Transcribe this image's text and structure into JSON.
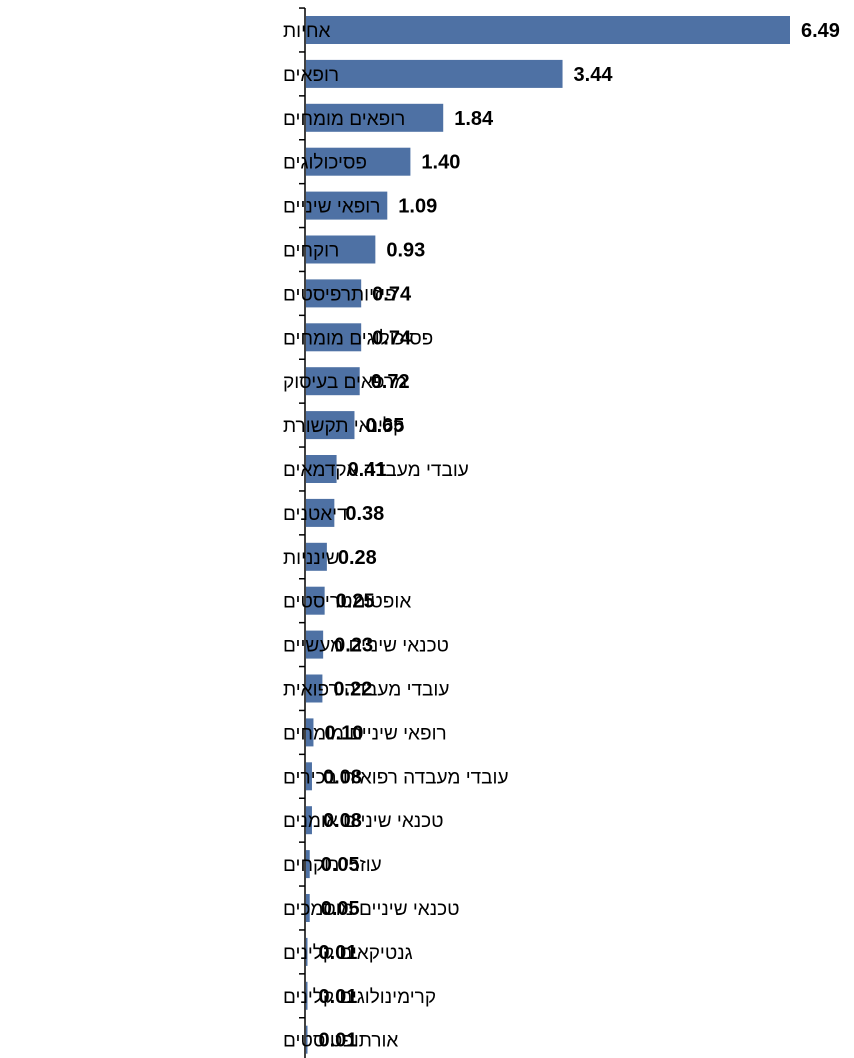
{
  "chart_data": {
    "type": "bar",
    "orientation": "horizontal",
    "categories": [
      "אחיות",
      "רופאים",
      "רופאים מומחים",
      "פסיכולוגים",
      "רופאי שיניים",
      "רוקחים",
      "פיזיותרפיסטים",
      "פסיכולוגים מומחים",
      "מרפאים בעיסוק",
      "קלינאי תקשורת",
      "עובדי מעבדה אקדמאים",
      "דיאטנים",
      "שינניות",
      "אופטומטריסטים",
      "טכנאי שיניים מעשיים",
      "עובדי מעבדה רפואית",
      "רופאי שיניים מומחים",
      "עובדי מעבדה רפואית בכירים",
      "טכנאי שיניים אומנים",
      "עוזרי רוקחים",
      "טכנאי שיניים מוסמכים",
      "גנטיקאים קלינים",
      "קרימינולוגים קלינים",
      "אורתופטיסטים"
    ],
    "values": [
      6.49,
      3.44,
      1.84,
      1.4,
      1.09,
      0.93,
      0.74,
      0.74,
      0.72,
      0.65,
      0.41,
      0.38,
      0.28,
      0.25,
      0.23,
      0.22,
      0.1,
      0.08,
      0.08,
      0.05,
      0.05,
      0.01,
      0.01,
      0.01
    ],
    "value_labels": [
      "6.49",
      "3.44",
      "1.84",
      "1.40",
      "1.09",
      "0.93",
      "0.74",
      "0.74",
      "0.72",
      "0.65",
      "0.41",
      "0.38",
      "0.28",
      "0.25",
      "0.23",
      "0.22",
      "0.10",
      "0.08",
      "0.08",
      "0.05",
      "0.05",
      "0.01",
      "0.01",
      "0.01"
    ],
    "xlim": [
      0,
      6.49
    ],
    "bar_color": "#4E71A4",
    "grid": false,
    "legend": "none"
  }
}
